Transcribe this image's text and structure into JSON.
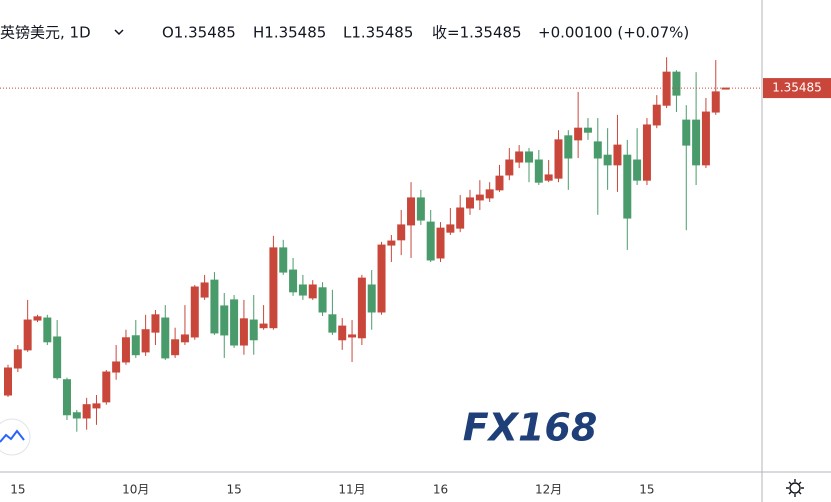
{
  "chart_data": {
    "type": "candlestick",
    "legend": {
      "symbol": "英镑美元, 1D",
      "open": "O1.35485",
      "high": "H1.35485",
      "low": "L1.35485",
      "close": "收=1.35485",
      "change": "+0.00100 (+0.07%)"
    },
    "last_price": 1.35485,
    "watermark": "FX168",
    "up_color": "#c9473a",
    "down_color": "#4a9b6b",
    "ylim": [
      1.2596,
      1.3767
    ],
    "categories": [
      null,
      "15",
      null,
      null,
      null,
      null,
      null,
      null,
      null,
      null,
      null,
      null,
      null,
      "10月",
      null,
      null,
      null,
      null,
      null,
      null,
      null,
      null,
      null,
      "15",
      null,
      null,
      null,
      null,
      null,
      null,
      null,
      null,
      null,
      null,
      null,
      "11月",
      null,
      null,
      null,
      null,
      null,
      null,
      null,
      null,
      "16",
      null,
      null,
      null,
      null,
      null,
      null,
      null,
      null,
      null,
      null,
      "12月",
      null,
      null,
      null,
      null,
      null,
      null,
      null,
      null,
      null,
      "15",
      null,
      null,
      null,
      null,
      null,
      null,
      null,
      null
    ],
    "open": [
      1.2787,
      1.2854,
      1.2899,
      1.2973,
      1.2978,
      1.2931,
      1.2825,
      1.2743,
      1.273,
      1.2755,
      1.277,
      1.2844,
      1.2869,
      1.2934,
      1.2894,
      1.2943,
      1.2978,
      1.2887,
      1.2919,
      1.2931,
      1.303,
      1.3072,
      1.3008,
      1.3023,
      1.2911,
      1.2973,
      1.2954,
      1.2954,
      1.3152,
      1.3097,
      1.306,
      1.3028,
      1.3053,
      1.2986,
      1.2924,
      1.2931,
      1.2929,
      1.306,
      1.2993,
      1.3159,
      1.3172,
      1.3209,
      1.3276,
      1.3216,
      1.3127,
      1.3191,
      1.3201,
      1.3251,
      1.3271,
      1.3276,
      1.3296,
      1.3333,
      1.3365,
      1.339,
      1.337,
      1.332,
      1.3325,
      1.343,
      1.342,
      1.3449,
      1.3415,
      1.3382,
      1.3358,
      1.3382,
      1.337,
      1.332,
      1.3457,
      1.3506,
      1.3588,
      1.3469,
      1.3469,
      1.3358,
      1.3489,
      1.35485
    ],
    "high": [
      1.2862,
      1.2911,
      1.3023,
      1.2986,
      1.2986,
      1.2973,
      1.283,
      1.275,
      1.278,
      1.2787,
      1.2849,
      1.2911,
      1.2949,
      1.2973,
      1.2986,
      1.2998,
      1.301,
      1.2954,
      1.301,
      1.306,
      1.3085,
      1.3092,
      1.304,
      1.3035,
      1.3023,
      1.3035,
      1.301,
      1.3182,
      1.3172,
      1.3127,
      1.3085,
      1.3072,
      1.3067,
      1.3048,
      1.2978,
      1.2973,
      1.3085,
      1.3097,
      1.3167,
      1.3184,
      1.3246,
      1.3315,
      1.3296,
      1.3246,
      1.3216,
      1.3251,
      1.3283,
      1.3296,
      1.332,
      1.3315,
      1.3358,
      1.34,
      1.3407,
      1.34,
      1.3395,
      1.337,
      1.3444,
      1.3444,
      1.3539,
      1.3474,
      1.3474,
      1.3449,
      1.3482,
      1.342,
      1.3449,
      1.3474,
      1.3531,
      1.3625,
      1.3593,
      1.3506,
      1.3588,
      1.3524,
      1.3618,
      1.35485
    ],
    "low": [
      1.2782,
      1.2844,
      1.2894,
      1.2968,
      1.2911,
      1.2825,
      1.2725,
      1.2696,
      1.2701,
      1.2713,
      1.2763,
      1.2825,
      1.2862,
      1.2879,
      1.2884,
      1.2911,
      1.2874,
      1.2879,
      1.2911,
      1.2924,
      1.3023,
      1.2936,
      1.2879,
      1.2904,
      1.2887,
      1.2887,
      1.2949,
      1.2949,
      1.3085,
      1.3033,
      1.3023,
      1.3023,
      1.2983,
      1.2936,
      1.2899,
      1.2869,
      1.2911,
      1.2949,
      1.2986,
      1.3117,
      1.3134,
      1.3127,
      1.3209,
      1.3117,
      1.3117,
      1.3184,
      1.3191,
      1.3234,
      1.3246,
      1.3266,
      1.3291,
      1.332,
      1.335,
      1.3315,
      1.3308,
      1.3315,
      1.3315,
      1.3296,
      1.3375,
      1.342,
      1.3234,
      1.3296,
      1.3291,
      1.3147,
      1.3308,
      1.3308,
      1.3449,
      1.3499,
      1.3489,
      1.3196,
      1.3308,
      1.335,
      1.3482,
      1.35485
    ],
    "close": [
      1.2854,
      1.2899,
      1.2973,
      1.2981,
      1.2919,
      1.283,
      1.2738,
      1.273,
      1.2763,
      1.2765,
      1.2844,
      1.2869,
      1.2929,
      1.2887,
      1.2949,
      1.2986,
      1.2879,
      1.2924,
      1.2936,
      1.3055,
      1.3065,
      1.2941,
      1.2936,
      1.2911,
      1.2976,
      1.2924,
      1.2963,
      1.3152,
      1.3092,
      1.3043,
      1.3035,
      1.306,
      1.2993,
      1.2943,
      1.2958,
      1.2936,
      1.3077,
      1.2993,
      1.3159,
      1.3169,
      1.3209,
      1.3276,
      1.3221,
      1.3122,
      1.3201,
      1.3209,
      1.3251,
      1.3276,
      1.3283,
      1.3296,
      1.333,
      1.337,
      1.339,
      1.3365,
      1.3315,
      1.3333,
      1.342,
      1.3375,
      1.3449,
      1.3439,
      1.3375,
      1.3358,
      1.3407,
      1.3226,
      1.332,
      1.3457,
      1.3506,
      1.3588,
      1.3531,
      1.3407,
      1.3358,
      1.3489,
      1.3539,
      1.35485
    ]
  }
}
